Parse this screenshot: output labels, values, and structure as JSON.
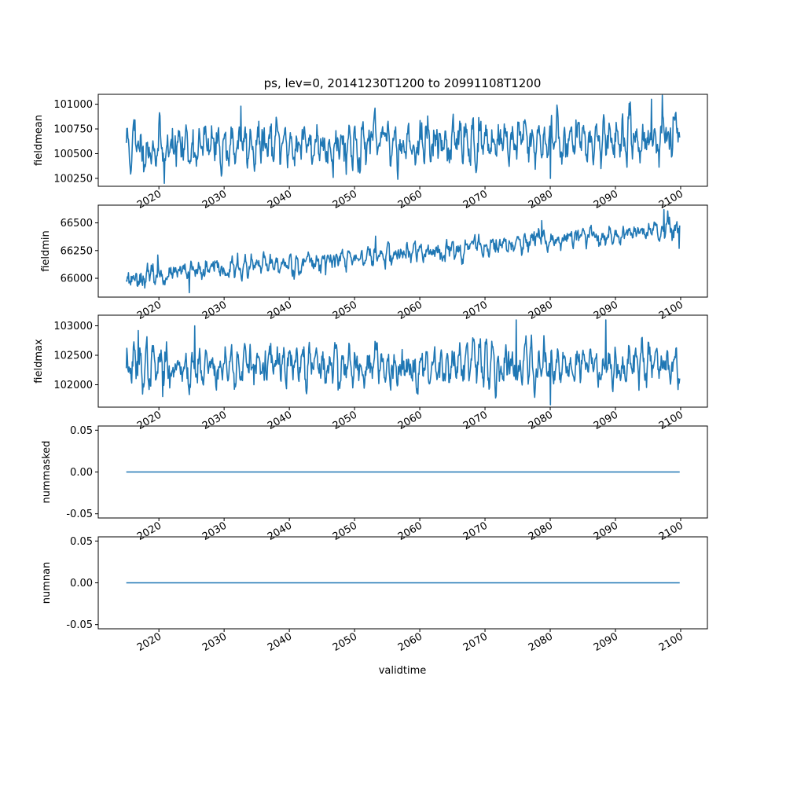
{
  "chart_data": {
    "type": "line",
    "title": "ps, lev=0, 20141230T1200 to 20991108T1200",
    "xlabel": "validtime",
    "x_range": [
      2015.0,
      2099.85
    ],
    "xlim": [
      2010.7,
      2104.1
    ],
    "x_ticks": [
      "2020",
      "2030",
      "2040",
      "2050",
      "2060",
      "2070",
      "2080",
      "2090",
      "2100"
    ],
    "line_color": "#1f77b4",
    "grid": false,
    "legend": "none",
    "panels": [
      {
        "ylabel": "fieldmean",
        "ylim": [
          100170,
          101100
        ],
        "y_ticks": [
          "100250",
          "100500",
          "100750",
          "101000"
        ],
        "series": {
          "base": 100560,
          "trend": 1.2,
          "amplitude": 200,
          "noise": 80,
          "seed": 11,
          "min": 100200,
          "max": 101090,
          "extremes": [
            [
              2016.3,
              100840
            ],
            [
              2020.8,
              100200
            ],
            [
              2032.6,
              100980
            ],
            [
              2080.0,
              100250
            ],
            [
              2095.5,
              101050
            ],
            [
              2097.2,
              101090
            ]
          ]
        }
      },
      {
        "ylabel": "fieldmin",
        "ylim": [
          65830,
          66660
        ],
        "y_ticks": [
          "66000",
          "66250",
          "66500"
        ],
        "series": {
          "base": 66000,
          "trend": 5.2,
          "amplitude": 60,
          "noise": 35,
          "seed": 23,
          "min": 65870,
          "max": 66620,
          "extremes": [
            [
              2019.8,
              66210
            ],
            [
              2024.7,
              65870
            ],
            [
              2053.2,
              66380
            ],
            [
              2078.7,
              66520
            ],
            [
              2097.4,
              66620
            ],
            [
              2099.8,
              66270
            ]
          ]
        }
      },
      {
        "ylabel": "fieldmax",
        "ylim": [
          101620,
          103180
        ],
        "y_ticks": [
          "102000",
          "102500",
          "103000"
        ],
        "series": {
          "base": 102300,
          "trend": 0.8,
          "amplitude": 320,
          "noise": 120,
          "seed": 37,
          "min": 101660,
          "max": 103100,
          "extremes": [
            [
              2016.8,
              102920
            ],
            [
              2020.6,
              101800
            ],
            [
              2025.5,
              103000
            ],
            [
              2074.8,
              103100
            ],
            [
              2080.0,
              101660
            ],
            [
              2088.5,
              103100
            ]
          ]
        }
      },
      {
        "ylabel": "nummasked",
        "ylim": [
          -0.055,
          0.055
        ],
        "y_ticks": [
          "-0.05",
          "0.00",
          "0.05"
        ],
        "series": {
          "constant": 0.0
        }
      },
      {
        "ylabel": "numnan",
        "ylim": [
          -0.055,
          0.055
        ],
        "y_ticks": [
          "-0.05",
          "0.00",
          "0.05"
        ],
        "series": {
          "constant": 0.0
        }
      }
    ]
  }
}
